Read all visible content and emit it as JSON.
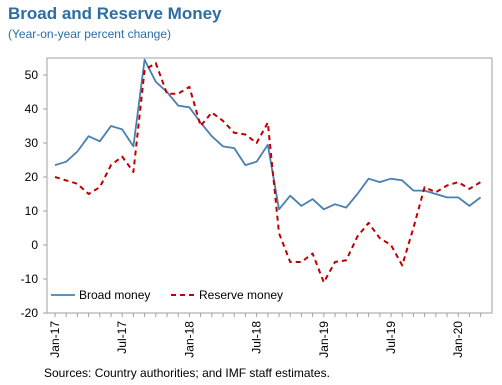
{
  "header": {
    "title": "Broad and Reserve Money",
    "subtitle": "(Year-on-year percent change)"
  },
  "footer": {
    "source": "Sources: Country authorities; and IMF staff estimates."
  },
  "chart_data": {
    "type": "line",
    "title": "Broad and Reserve Money",
    "subtitle": "(Year-on-year percent change)",
    "ylim": [
      -20,
      55
    ],
    "yticks": [
      50,
      40,
      30,
      20,
      10,
      0,
      -10,
      -20
    ],
    "x_tick_labels": [
      "Jan-17",
      "Jul-17",
      "Jan-18",
      "Jul-18",
      "Jan-19",
      "Jul-19",
      "Jan-20"
    ],
    "x_tick_positions": [
      0,
      6,
      12,
      18,
      24,
      30,
      36
    ],
    "legend": "bottom-left",
    "grid": false,
    "series": [
      {
        "name": "Broad money",
        "color": "#4a7fb0",
        "style": "solid",
        "x": [
          0,
          1,
          2,
          3,
          4,
          5,
          6,
          7,
          8,
          9,
          10,
          11,
          12,
          13,
          14,
          15,
          16,
          17,
          18,
          19,
          20,
          21,
          22,
          23,
          24,
          25,
          26,
          27,
          28,
          29,
          30,
          31,
          32,
          33,
          34,
          35,
          36,
          37,
          38
        ],
        "values": [
          23.5,
          24.5,
          27.5,
          32,
          30.5,
          35,
          34,
          29,
          54.5,
          48,
          45,
          41,
          40.5,
          36,
          32,
          29,
          28.5,
          23.5,
          24.5,
          29.5,
          10.5,
          14.5,
          11.5,
          13.5,
          10.5,
          12,
          11,
          15,
          19.5,
          18.5,
          19.5,
          19,
          16,
          16,
          15,
          14,
          14,
          11.5,
          14
        ]
      },
      {
        "name": "Reserve money",
        "color": "#c00000",
        "style": "dashed",
        "x": [
          0,
          1,
          2,
          3,
          4,
          5,
          6,
          7,
          8,
          9,
          10,
          11,
          12,
          13,
          14,
          15,
          16,
          17,
          18,
          19,
          20,
          21,
          22,
          23,
          24,
          25,
          26,
          27,
          28,
          29,
          30,
          31,
          32,
          33,
          34,
          35,
          36,
          37,
          38
        ],
        "values": [
          20,
          19,
          18,
          15,
          17,
          23.5,
          26,
          21.5,
          51.5,
          53.5,
          44.5,
          44.5,
          46.5,
          35,
          39,
          36.5,
          33,
          32.5,
          30,
          36,
          3.5,
          -5,
          -5,
          -2.5,
          -11,
          -5,
          -4.5,
          2.5,
          6.5,
          2,
          0,
          -6,
          5,
          17,
          15.5,
          17.5,
          18.5,
          16.5,
          18.5
        ]
      }
    ]
  }
}
